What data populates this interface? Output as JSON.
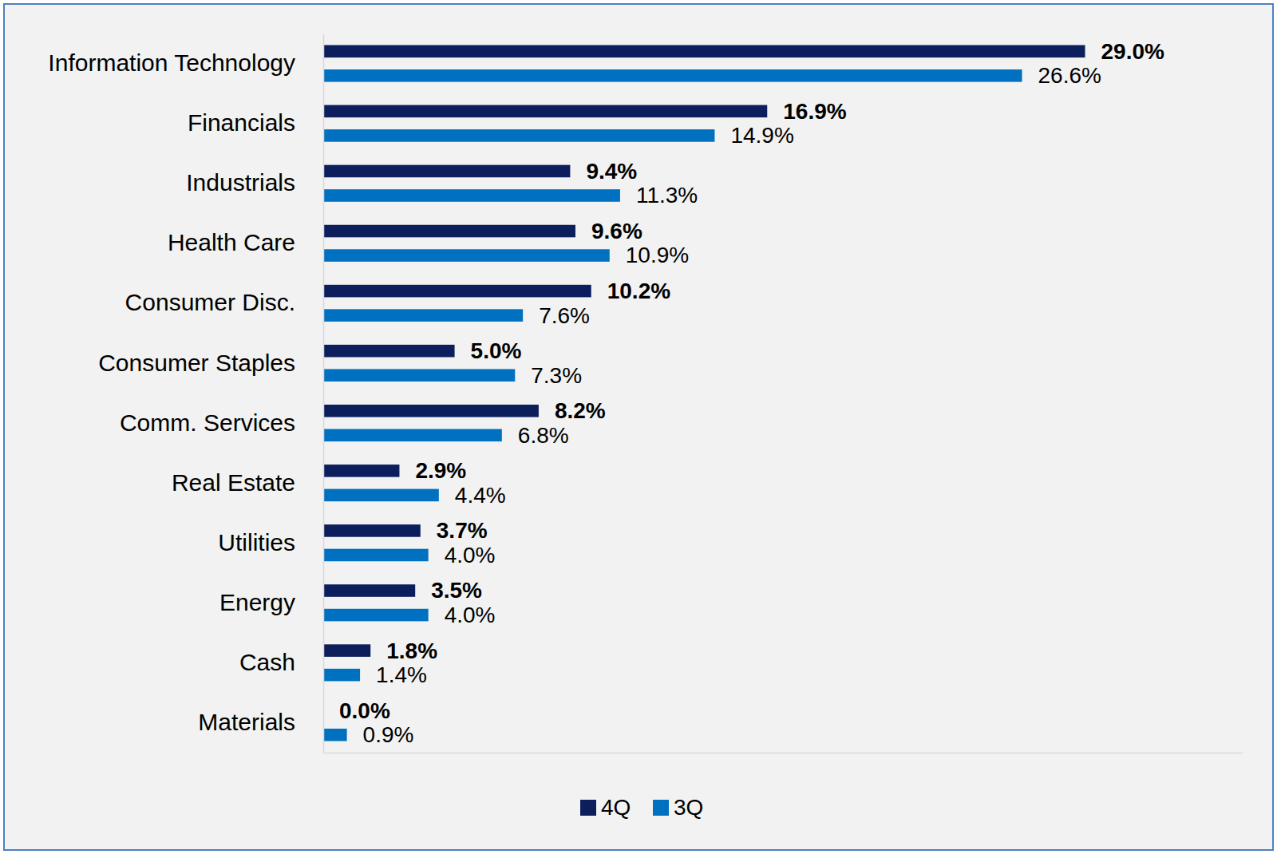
{
  "chart_data": {
    "type": "bar",
    "orientation": "horizontal",
    "categories": [
      "Information Technology",
      "Financials",
      "Industrials",
      "Health Care",
      "Consumer Disc.",
      "Consumer Staples",
      "Comm. Services",
      "Real Estate",
      "Utilities",
      "Energy",
      "Cash",
      "Materials"
    ],
    "series": [
      {
        "name": "4Q",
        "color": "#0c1f5c",
        "values": [
          29.0,
          16.9,
          9.4,
          9.6,
          10.2,
          5.0,
          8.2,
          2.9,
          3.7,
          3.5,
          1.8,
          0.0
        ],
        "value_labels": [
          "29.0%",
          "16.9%",
          "9.4%",
          "9.6%",
          "10.2%",
          "5.0%",
          "8.2%",
          "2.9%",
          "3.7%",
          "3.5%",
          "1.8%",
          "0.0%"
        ]
      },
      {
        "name": "3Q",
        "color": "#0070c0",
        "values": [
          26.6,
          14.9,
          11.3,
          10.9,
          7.6,
          7.3,
          6.8,
          4.4,
          4.0,
          4.0,
          1.4,
          0.9
        ],
        "value_labels": [
          "26.6%",
          "14.9%",
          "11.3%",
          "10.9%",
          "7.6%",
          "7.3%",
          "6.8%",
          "4.4%",
          "4.0%",
          "4.0%",
          "1.4%",
          "0.9%"
        ]
      }
    ],
    "xlim": [
      0,
      35
    ],
    "data_labels": true,
    "tick_labels": "y",
    "grid": false,
    "legend": "bottom"
  }
}
